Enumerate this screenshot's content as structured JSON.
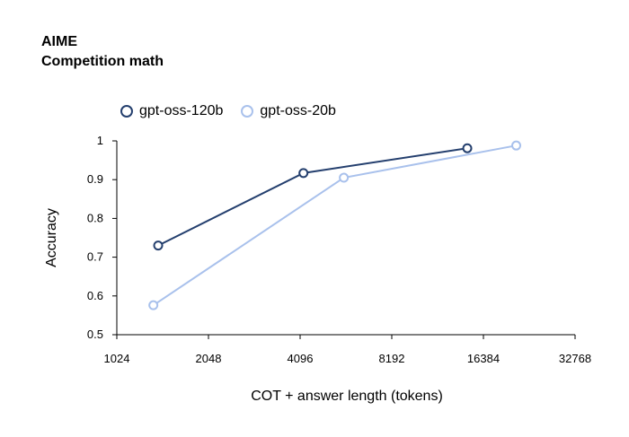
{
  "chart_data": {
    "type": "line",
    "title": "AIME",
    "subtitle": "Competition math",
    "xlabel": "COT + answer length (tokens)",
    "ylabel": "Accuracy",
    "xscale": "log2",
    "xlim": [
      1024,
      32768
    ],
    "ylim": [
      0.5,
      1.0
    ],
    "x_ticks": [
      "1024",
      "2048",
      "4096",
      "8192",
      "16384",
      "32768"
    ],
    "y_ticks": [
      "1",
      "0.9",
      "0.8",
      "0.7",
      "0.6",
      "0.5"
    ],
    "legend_position": "top-left",
    "series": [
      {
        "name": "gpt-oss-120b",
        "color": "#243f6e",
        "x": [
          1400,
          4200,
          14500
        ],
        "y": [
          0.73,
          0.917,
          0.981
        ]
      },
      {
        "name": "gpt-oss-20b",
        "color": "#a9c1ec",
        "x": [
          1350,
          5700,
          21000
        ],
        "y": [
          0.576,
          0.905,
          0.988
        ]
      }
    ]
  }
}
